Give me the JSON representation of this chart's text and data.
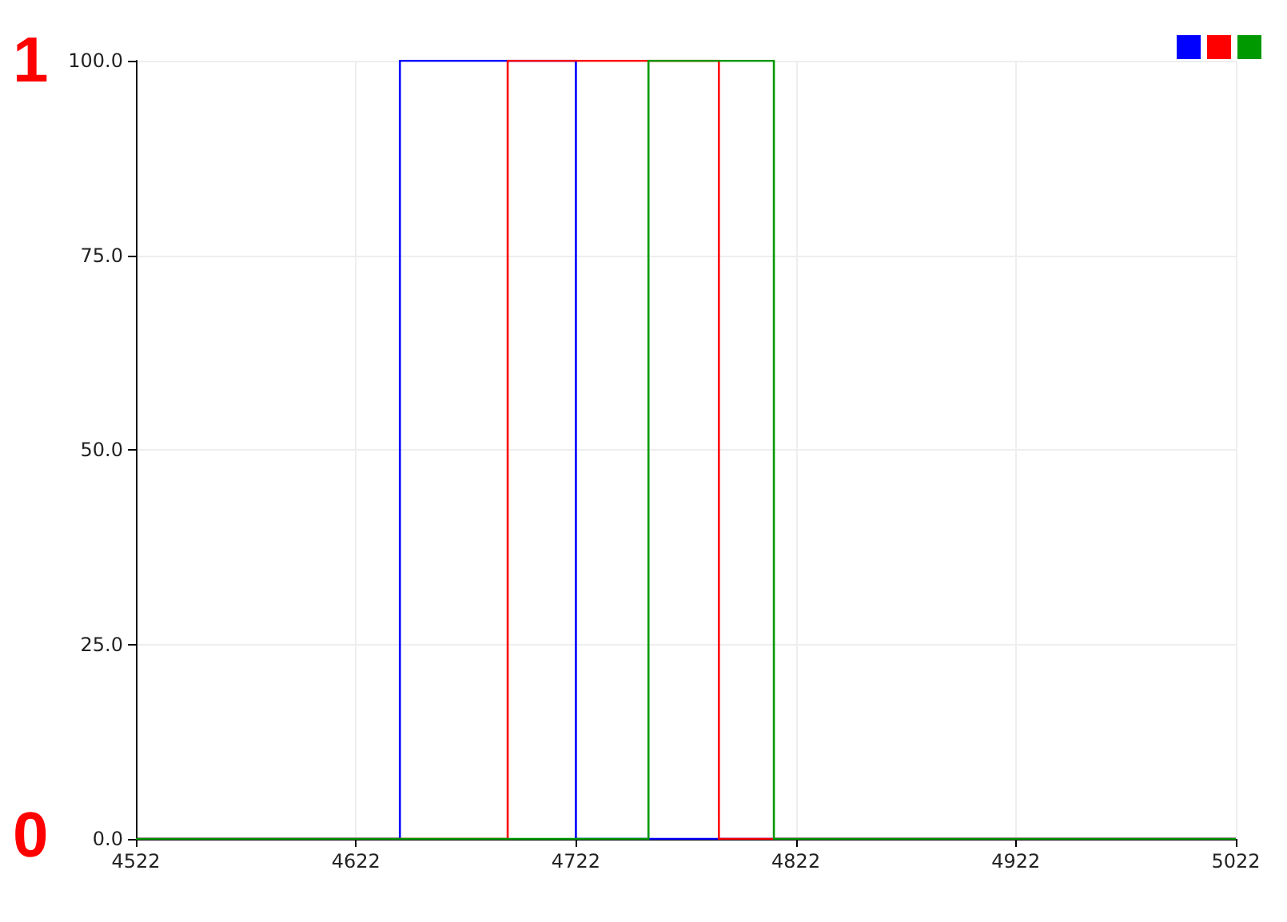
{
  "chart_data": {
    "type": "step",
    "xlim": [
      4522,
      5022
    ],
    "xticks": [
      4522,
      4622,
      4722,
      4822,
      4922,
      5022
    ],
    "ylim": [
      0,
      100
    ],
    "yticks": [
      {
        "value": 0,
        "label": "0.0"
      },
      {
        "value": 25,
        "label": "25.0"
      },
      {
        "value": 50,
        "label": "50.0"
      },
      {
        "value": 75,
        "label": "75.0"
      },
      {
        "value": 100,
        "label": "100.0"
      }
    ],
    "grid": true,
    "marker": "none",
    "line_style": "solid",
    "annotations": [
      "1",
      "0"
    ],
    "series": [
      {
        "color": "#0000ff",
        "x": [
          4522,
          4642,
          4722,
          5022
        ],
        "values": [
          0,
          100,
          0,
          0
        ]
      },
      {
        "color": "#ff0000",
        "x": [
          4522,
          4691,
          4787,
          5022
        ],
        "values": [
          0,
          100,
          0,
          0
        ]
      },
      {
        "color": "#009900",
        "x": [
          4522,
          4755,
          4812,
          5022
        ],
        "values": [
          0,
          100,
          0,
          0
        ]
      }
    ]
  }
}
